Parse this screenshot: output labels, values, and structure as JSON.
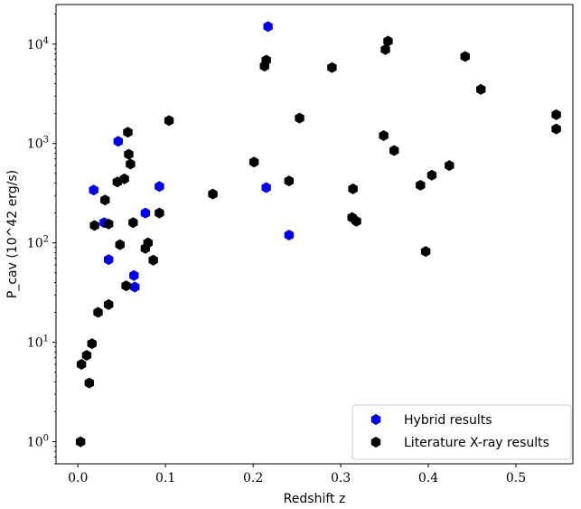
{
  "chart_data": {
    "type": "scatter",
    "xlabel": "Redshift z",
    "ylabel": "P_cav (10^42 erg/s)",
    "xlim": [
      -0.025,
      0.565
    ],
    "ylim": [
      0.6,
      25000
    ],
    "yscale": "log",
    "grid": false,
    "legend_position": "bottom-right",
    "x_ticks": [
      {
        "value": 0.0,
        "label": "0.0"
      },
      {
        "value": 0.1,
        "label": "0.1"
      },
      {
        "value": 0.2,
        "label": "0.2"
      },
      {
        "value": 0.3,
        "label": "0.3"
      },
      {
        "value": 0.4,
        "label": "0.4"
      },
      {
        "value": 0.5,
        "label": "0.5"
      }
    ],
    "y_ticks": [
      {
        "value": 1,
        "base": "10",
        "exp": "0"
      },
      {
        "value": 10,
        "base": "10",
        "exp": "1"
      },
      {
        "value": 100,
        "base": "10",
        "exp": "2"
      },
      {
        "value": 1000,
        "base": "10",
        "exp": "3"
      },
      {
        "value": 10000,
        "base": "10",
        "exp": "4"
      }
    ],
    "series": [
      {
        "name": "Hybrid results",
        "color": "#0000ee",
        "points": [
          [
            0.018,
            340
          ],
          [
            0.03,
            160
          ],
          [
            0.035,
            68
          ],
          [
            0.046,
            1050
          ],
          [
            0.064,
            47
          ],
          [
            0.065,
            36
          ],
          [
            0.077,
            200
          ],
          [
            0.093,
            370
          ],
          [
            0.215,
            360
          ],
          [
            0.217,
            15000
          ],
          [
            0.241,
            120
          ]
        ]
      },
      {
        "name": "Literature X-ray results",
        "color": "#000000",
        "points": [
          [
            0.003,
            1.0
          ],
          [
            0.004,
            6.0
          ],
          [
            0.01,
            7.4
          ],
          [
            0.013,
            3.9
          ],
          [
            0.016,
            9.7
          ],
          [
            0.019,
            150
          ],
          [
            0.023,
            20
          ],
          [
            0.031,
            270
          ],
          [
            0.035,
            155
          ],
          [
            0.035,
            24
          ],
          [
            0.045,
            410
          ],
          [
            0.048,
            96
          ],
          [
            0.053,
            440
          ],
          [
            0.055,
            37
          ],
          [
            0.057,
            1300
          ],
          [
            0.058,
            780
          ],
          [
            0.06,
            620
          ],
          [
            0.063,
            160
          ],
          [
            0.077,
            88
          ],
          [
            0.08,
            100
          ],
          [
            0.086,
            67
          ],
          [
            0.093,
            200
          ],
          [
            0.104,
            1700
          ],
          [
            0.154,
            310
          ],
          [
            0.201,
            650
          ],
          [
            0.213,
            6000
          ],
          [
            0.215,
            6900
          ],
          [
            0.241,
            420
          ],
          [
            0.253,
            1800
          ],
          [
            0.29,
            5800
          ],
          [
            0.313,
            180
          ],
          [
            0.314,
            350
          ],
          [
            0.318,
            165
          ],
          [
            0.349,
            1200
          ],
          [
            0.351,
            8800
          ],
          [
            0.354,
            10700
          ],
          [
            0.361,
            850
          ],
          [
            0.391,
            380
          ],
          [
            0.397,
            82
          ],
          [
            0.404,
            480
          ],
          [
            0.424,
            600
          ],
          [
            0.442,
            7500
          ],
          [
            0.46,
            3500
          ],
          [
            0.546,
            1400
          ],
          [
            0.546,
            1950
          ]
        ]
      }
    ]
  }
}
